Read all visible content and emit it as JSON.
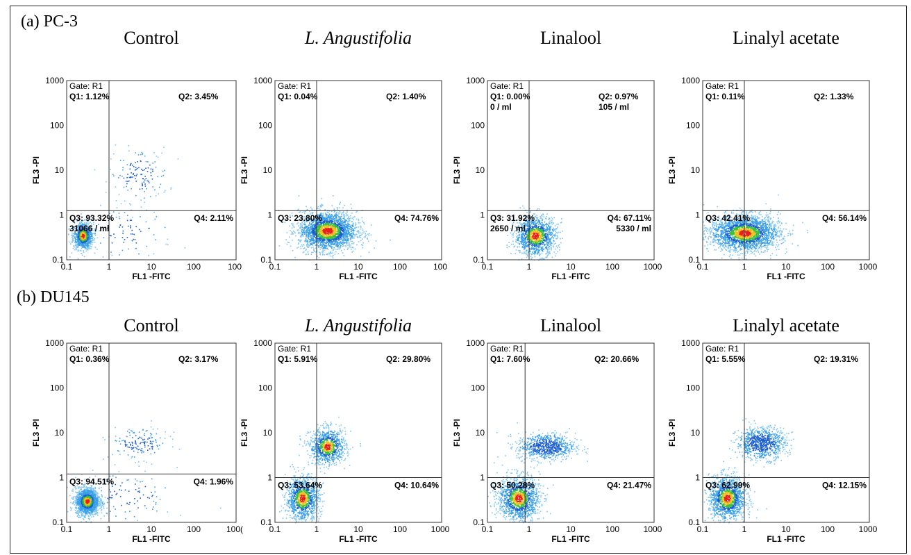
{
  "rows": [
    {
      "label": "(a) PC-3"
    },
    {
      "label": "(b) DU145"
    }
  ],
  "axes": {
    "xlabel": "FL1 -FITC",
    "ylabel": "FL3 -PI"
  },
  "chart_data": [
    {
      "type": "scatter",
      "title": "Control",
      "row": 0,
      "xticks": [
        "0.1",
        "1",
        "10",
        "100",
        "100"
      ],
      "yticks": [
        "0.1",
        "1",
        "10",
        "100",
        "1000"
      ],
      "gate": "Gate: R1",
      "quadrant_x": 1.0,
      "quadrant_y": 1.25,
      "q1": "Q1: 1.12%",
      "q2": "Q2: 3.45%",
      "q3": "Q3: 93.32%",
      "q3b": "31066 / ml",
      "q4": "Q4: 2.11%",
      "clusters": [
        {
          "cx": 0.24,
          "cy": 0.35,
          "sx": 0.12,
          "sy": 0.15,
          "n": 900,
          "hot": true
        },
        {
          "cx": 5,
          "cy": 8,
          "sx": 0.35,
          "sy": 0.3,
          "n": 140
        },
        {
          "cx": 3,
          "cy": 0.4,
          "sx": 0.5,
          "sy": 0.3,
          "n": 90
        }
      ]
    },
    {
      "type": "scatter",
      "title": "L. Angustifolia",
      "row": 0,
      "xticks": [
        "0.1",
        "1",
        "10",
        "100",
        "100"
      ],
      "yticks": [
        "0.1",
        "1",
        "10",
        "100",
        "1000"
      ],
      "gate": "Gate: R1",
      "quadrant_x": 1.0,
      "quadrant_y": 1.25,
      "q1": "Q1: 0.04%",
      "q2": "Q2: 1.40%",
      "q3": "Q3: 23.80%",
      "q3b": "",
      "q4": "Q4: 74.76%",
      "clusters": [
        {
          "cx": 1.8,
          "cy": 0.45,
          "sx": 0.35,
          "sy": 0.22,
          "n": 2200,
          "hot": true
        }
      ]
    },
    {
      "type": "scatter",
      "title": "Linalool",
      "row": 0,
      "xticks": [
        "0.1",
        "1",
        "10",
        "100",
        "1000"
      ],
      "yticks": [
        "0.1",
        "1",
        "10",
        "100",
        "1000"
      ],
      "gate": "Gate: R1",
      "quadrant_x": 1.0,
      "quadrant_y": 1.25,
      "q1": "Q1: 0.00%",
      "q1b": "0 / ml",
      "q2": "Q2: 0.97%",
      "q2b": "105 / ml",
      "q3": "Q3: 31.92%",
      "q3b": "2650 / ml",
      "q4": "Q4: 67.11%",
      "q4b": "5330 / ml",
      "clusters": [
        {
          "cx": 1.4,
          "cy": 0.35,
          "sx": 0.25,
          "sy": 0.22,
          "n": 1200,
          "hot": true
        }
      ]
    },
    {
      "type": "scatter",
      "title": "Linalyl acetate",
      "row": 0,
      "xticks": [
        "0.1",
        "1",
        "10",
        "100",
        "1000"
      ],
      "yticks": [
        "0.1",
        "1",
        "10",
        "100",
        "1000"
      ],
      "gate": "Gate: R1",
      "quadrant_x": 1.0,
      "quadrant_y": 1.25,
      "q1": "Q1: 0.11%",
      "q2": "Q2: 1.33%",
      "q3": "Q3: 42.41%",
      "q3b": "",
      "q4": "Q4: 56.14%",
      "clusters": [
        {
          "cx": 1.0,
          "cy": 0.4,
          "sx": 0.42,
          "sy": 0.2,
          "n": 2200,
          "hot": true
        }
      ]
    },
    {
      "type": "scatter",
      "title": "Control",
      "row": 1,
      "xticks": [
        "0.1",
        "1",
        "10",
        "100",
        "100("
      ],
      "yticks": [
        "0.1",
        "1",
        "10",
        "100",
        "1000"
      ],
      "gate": "Gate: R1",
      "quadrant_x": 1.0,
      "quadrant_y": 1.2,
      "q1": "Q1: 0.36%",
      "q2": "Q2: 3.17%",
      "q3": "Q3: 94.51%",
      "q3b": "",
      "q4": "Q4: 1.96%",
      "clusters": [
        {
          "cx": 0.3,
          "cy": 0.3,
          "sx": 0.14,
          "sy": 0.15,
          "n": 1600,
          "hot": true
        },
        {
          "cx": 5,
          "cy": 6,
          "sx": 0.35,
          "sy": 0.18,
          "n": 150
        },
        {
          "cx": 3,
          "cy": 0.4,
          "sx": 0.5,
          "sy": 0.3,
          "n": 100
        }
      ]
    },
    {
      "type": "scatter",
      "title": "L. Angustifolia",
      "row": 1,
      "xticks": [
        "0.1",
        "1",
        "10",
        "100",
        "1000"
      ],
      "yticks": [
        "0.1",
        "1",
        "10",
        "100",
        "1000"
      ],
      "gate": "Gate: R1",
      "quadrant_x": 1.0,
      "quadrant_y": 1.0,
      "q1": "Q1: 5.91%",
      "q2": "Q2: 29.80%",
      "q3": "Q3: 53.64%",
      "q3b": "",
      "q4": "Q4: 10.64%",
      "clusters": [
        {
          "cx": 0.45,
          "cy": 0.35,
          "sx": 0.2,
          "sy": 0.25,
          "n": 1100,
          "hot": true
        },
        {
          "cx": 1.8,
          "cy": 5,
          "sx": 0.22,
          "sy": 0.2,
          "n": 900,
          "hot": true
        }
      ]
    },
    {
      "type": "scatter",
      "title": "Linalool",
      "row": 1,
      "xticks": [
        "0.1",
        "1",
        "10",
        "100",
        "1000"
      ],
      "yticks": [
        "0.1",
        "1",
        "10",
        "100",
        "1000"
      ],
      "gate": "Gate: R1",
      "quadrant_x": 0.8,
      "quadrant_y": 1.0,
      "q1": "Q1: 7.60%",
      "q2": "Q2: 20.66%",
      "q3": "Q3: 50.28%",
      "q3b": "",
      "q4": "Q4: 21.47%",
      "clusters": [
        {
          "cx": 0.55,
          "cy": 0.35,
          "sx": 0.25,
          "sy": 0.25,
          "n": 1300,
          "hot": true
        },
        {
          "cx": 2.5,
          "cy": 5,
          "sx": 0.35,
          "sy": 0.15,
          "n": 700
        }
      ]
    },
    {
      "type": "scatter",
      "title": "Linalyl acetate",
      "row": 1,
      "xticks": [
        "0.1",
        "1",
        "10",
        "100",
        "1000"
      ],
      "yticks": [
        "0.1",
        "1",
        "10",
        "100",
        "1000"
      ],
      "gate": "Gate: R1",
      "quadrant_x": 1.0,
      "quadrant_y": 1.0,
      "q1": "Q1: 5.55%",
      "q2": "Q2: 19.31%",
      "q3": "Q3: 62.99%",
      "q3b": "",
      "q4": "Q4: 12.15%",
      "clusters": [
        {
          "cx": 0.38,
          "cy": 0.35,
          "sx": 0.22,
          "sy": 0.25,
          "n": 1300,
          "hot": true
        },
        {
          "cx": 2.5,
          "cy": 6,
          "sx": 0.3,
          "sy": 0.18,
          "n": 800
        }
      ]
    }
  ]
}
